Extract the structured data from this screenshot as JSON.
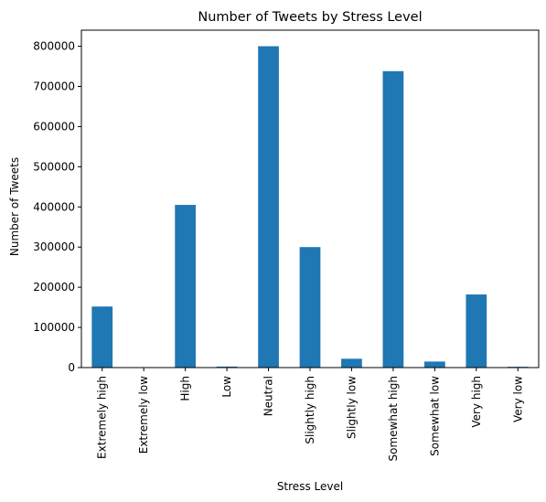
{
  "chart_data": {
    "type": "bar",
    "title": "Number of Tweets by Stress Level",
    "xlabel": "Stress Level",
    "ylabel": "Number of Tweets",
    "categories": [
      "Extremely high",
      "Extremely low",
      "High",
      "Low",
      "Neutral",
      "Slightly high",
      "Slightly low",
      "Somewhat high",
      "Somewhat low",
      "Very high",
      "Very low"
    ],
    "values": [
      152000,
      300,
      405000,
      2500,
      800000,
      300000,
      22000,
      738000,
      15000,
      182000,
      2000
    ],
    "ylim": [
      0,
      840000
    ],
    "yticks": [
      0,
      100000,
      200000,
      300000,
      400000,
      500000,
      600000,
      700000,
      800000
    ],
    "ytick_labels": [
      "0",
      "100000",
      "200000",
      "300000",
      "400000",
      "500000",
      "600000",
      "700000",
      "800000"
    ],
    "grid": false,
    "colors": {
      "bar": "#1f77b4"
    }
  }
}
